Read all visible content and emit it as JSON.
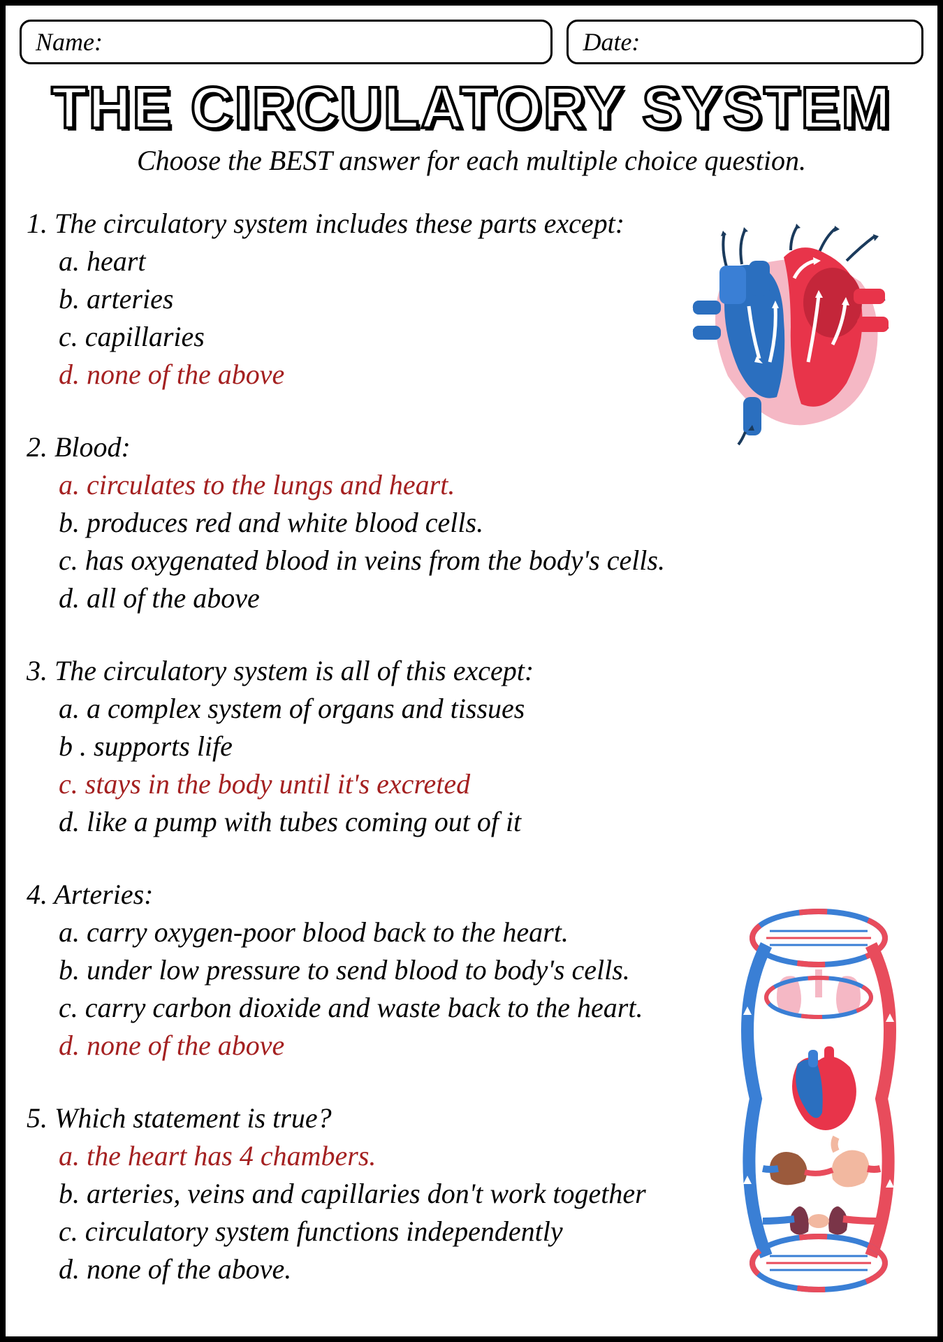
{
  "fields": {
    "name_label": "Name:",
    "date_label": "Date:"
  },
  "title": "THE CIRCULATORY SYSTEM",
  "subtitle": "Choose the BEST answer for each multiple choice question.",
  "colors": {
    "correct": "#a42020",
    "text": "#000000",
    "heart_red": "#e8344a",
    "heart_blue": "#2b6fbf",
    "heart_pink": "#f5b8c5",
    "circ_blue": "#3a7fd5",
    "circ_red": "#e84c5c"
  },
  "questions": [
    {
      "num": "1.",
      "text": "The circulatory system includes these parts except:",
      "options": [
        {
          "letter": "a.",
          "text": "heart",
          "correct": false
        },
        {
          "letter": "b.",
          "text": "arteries",
          "correct": false
        },
        {
          "letter": "c.",
          "text": "capillaries",
          "correct": false
        },
        {
          "letter": "d.",
          "text": "none of the above",
          "correct": true
        }
      ]
    },
    {
      "num": "2.",
      "text": "Blood:",
      "options": [
        {
          "letter": "a.",
          "text": "circulates to the lungs and heart.",
          "correct": true
        },
        {
          "letter": "b.",
          "text": "produces red and white blood cells.",
          "correct": false
        },
        {
          "letter": "c.",
          "text": "has oxygenated blood in veins from the body's cells.",
          "correct": false
        },
        {
          "letter": "d.",
          "text": "all of the above",
          "correct": false
        }
      ]
    },
    {
      "num": "3.",
      "text": "The circulatory system is all of this except:",
      "options": [
        {
          "letter": "a.",
          "text": "a complex system of organs and tissues",
          "correct": false
        },
        {
          "letter": "b .",
          "text": "supports life",
          "correct": false
        },
        {
          "letter": "c.",
          "text": "stays in the body until it's excreted",
          "correct": true
        },
        {
          "letter": "d.",
          "text": "like a pump with tubes coming out of it",
          "correct": false
        }
      ]
    },
    {
      "num": "4.",
      "text": "Arteries:",
      "options": [
        {
          "letter": "a.",
          "text": "carry oxygen-poor blood back to the heart.",
          "correct": false
        },
        {
          "letter": "b.",
          "text": "under low pressure to send blood to body's cells.",
          "correct": false
        },
        {
          "letter": "c.",
          "text": "carry carbon dioxide and waste back to the heart.",
          "correct": false
        },
        {
          "letter": "d.",
          "text": "none of the above",
          "correct": true
        }
      ]
    },
    {
      "num": "5.",
      "text": "Which statement is true?",
      "options": [
        {
          "letter": "a.",
          "text": "the heart has 4 chambers.",
          "correct": true
        },
        {
          "letter": "b.",
          "text": "arteries, veins and capillaries don't work together",
          "correct": false
        },
        {
          "letter": "c.",
          "text": "circulatory system functions independently",
          "correct": false
        },
        {
          "letter": "d.",
          "text": "none of the above.",
          "correct": false
        }
      ]
    }
  ]
}
